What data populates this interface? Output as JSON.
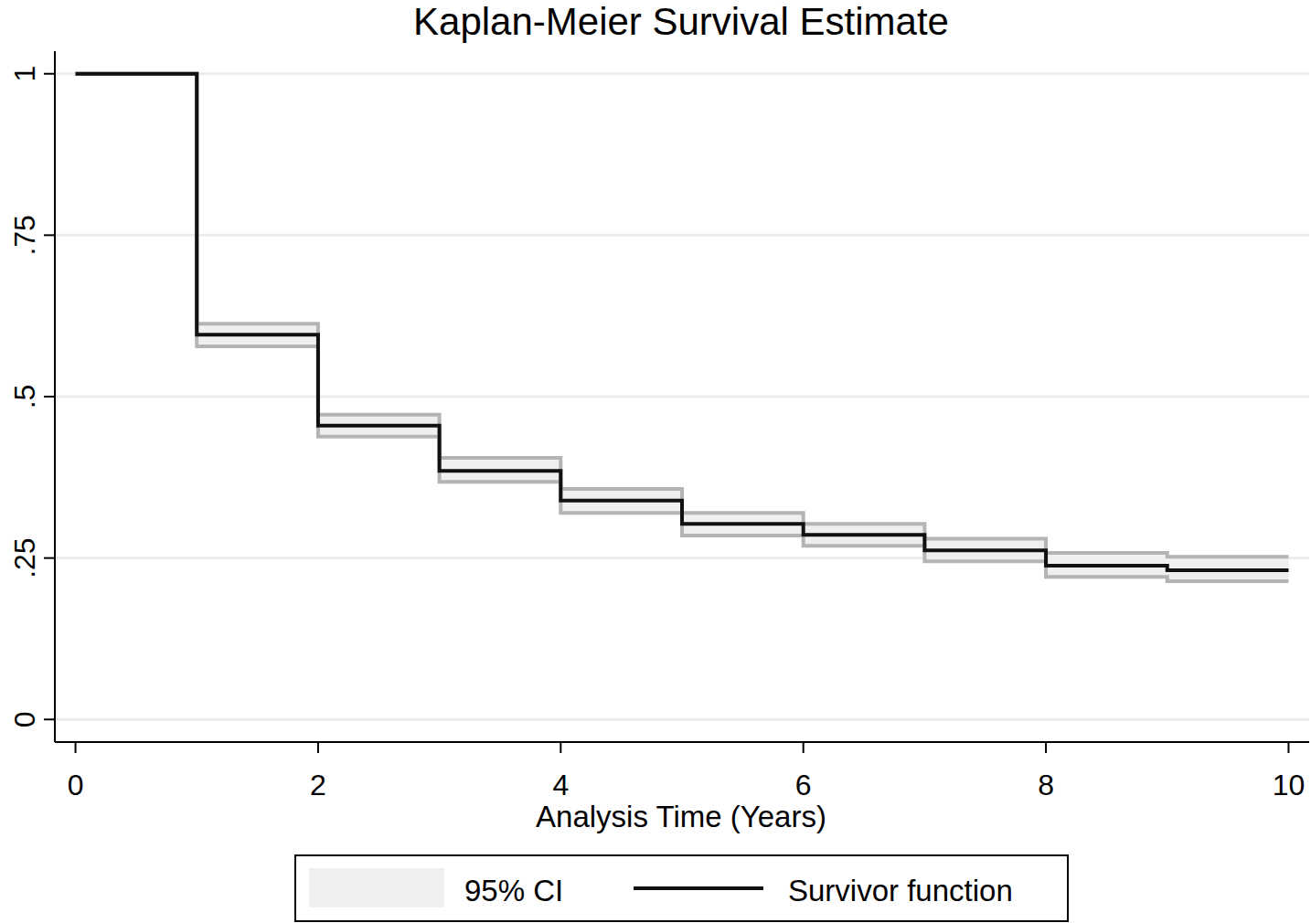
{
  "chart_data": {
    "type": "line",
    "title": "Kaplan-Meier Survival Estimate",
    "x_label": "Analysis Time (Years)",
    "x": [
      0,
      1,
      2,
      3,
      4,
      5,
      6,
      7,
      8,
      9,
      10
    ],
    "series": [
      {
        "name": "95% CI",
        "type": "band",
        "color": "#efefef",
        "lower": [
          1,
          0.578,
          0.438,
          0.368,
          0.32,
          0.285,
          0.269,
          0.245,
          0.221,
          0.214,
          0.214
        ],
        "upper": [
          1,
          0.613,
          0.472,
          0.405,
          0.357,
          0.32,
          0.303,
          0.28,
          0.258,
          0.252,
          0.252
        ]
      },
      {
        "name": "Survivor function",
        "type": "step",
        "color": "#111111",
        "values": [
          1,
          0.596,
          0.455,
          0.385,
          0.339,
          0.303,
          0.286,
          0.262,
          0.238,
          0.231,
          0.231
        ]
      }
    ],
    "xlim": [
      -0.17,
      10.17
    ],
    "ylim": [
      -0.035,
      1.035
    ],
    "xticks": [
      0,
      2,
      4,
      6,
      8,
      10
    ],
    "yticks": [
      0,
      {
        "value": 0.25,
        "label": ".25"
      },
      {
        "value": 0.5,
        "label": ".5"
      },
      {
        "value": 0.75,
        "label": ".75"
      },
      1
    ],
    "grid": true,
    "legend": "bottom"
  }
}
